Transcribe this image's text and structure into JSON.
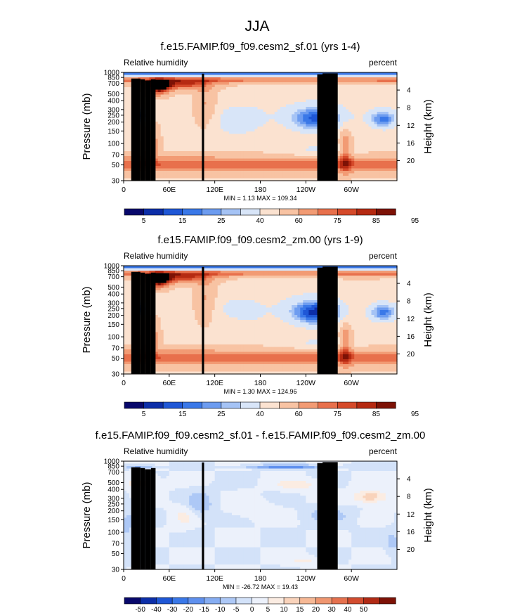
{
  "figure_title": "JJA",
  "colors": {
    "absolute_scale": [
      "#08086b",
      "#0c2ea8",
      "#1f57d6",
      "#3a78e8",
      "#6d9cf0",
      "#a5c3f5",
      "#d8e5f8",
      "#fbe2d0",
      "#f8c3a3",
      "#f29b74",
      "#e8704c",
      "#d54a2a",
      "#b52a12",
      "#7d1206"
    ],
    "difference_scale": [
      "#08086b",
      "#0c2ea8",
      "#1f57d6",
      "#3a78e8",
      "#5f90ee",
      "#86adf2",
      "#adc8f6",
      "#d3e2f9",
      "#ecf1fb",
      "#fbece2",
      "#f9d3bb",
      "#f6b895",
      "#ef9670",
      "#e5714e",
      "#d24c2f",
      "#b12a15",
      "#7d1206"
    ],
    "topography": "#000000"
  },
  "chart_data": [
    {
      "type": "contour",
      "title": "f.e15.FAMIP.f09_f09.cesm2_sf.01 (yrs 1-4)",
      "variable": "Relative humidity",
      "units": "percent",
      "ylabel": "Pressure (mb)",
      "y2label": "Height (km)",
      "x_ticks": [
        "0",
        "60E",
        "120E",
        "180",
        "120W",
        "60W"
      ],
      "y_ticks": [
        "30",
        "50",
        "70",
        "100",
        "150",
        "200",
        "250",
        "300",
        "400",
        "500",
        "700",
        "850",
        "1000"
      ],
      "y_tick_values": [
        30,
        50,
        70,
        100,
        150,
        200,
        250,
        300,
        400,
        500,
        700,
        850,
        1000
      ],
      "y2_ticks": [
        "20",
        "16",
        "12",
        "8",
        "4"
      ],
      "y2_tick_values": [
        20,
        16,
        12,
        8,
        4
      ],
      "xlim": [
        0,
        360
      ],
      "ylim": [
        1000,
        30
      ],
      "stats": "MIN =   1.13  MAX = 109.34",
      "min": 1.13,
      "max": 109.34,
      "colorbar_levels": [
        5,
        10,
        15,
        20,
        25,
        30,
        40,
        50,
        60,
        70,
        75,
        80,
        85,
        90,
        95
      ],
      "colorbar_labels": [
        "5",
        "15",
        "25",
        "40",
        "60",
        "75",
        "85",
        "95"
      ],
      "scale": "absolute",
      "case": 0
    },
    {
      "type": "contour",
      "title": "f.e15.FAMIP.f09_f09.cesm2_zm.00 (yrs 1-9)",
      "variable": "Relative humidity",
      "units": "percent",
      "ylabel": "Pressure (mb)",
      "y2label": "Height (km)",
      "x_ticks": [
        "0",
        "60E",
        "120E",
        "180",
        "120W",
        "60W"
      ],
      "y_ticks": [
        "30",
        "50",
        "70",
        "100",
        "150",
        "200",
        "250",
        "300",
        "400",
        "500",
        "700",
        "850",
        "1000"
      ],
      "y_tick_values": [
        30,
        50,
        70,
        100,
        150,
        200,
        250,
        300,
        400,
        500,
        700,
        850,
        1000
      ],
      "y2_ticks": [
        "20",
        "16",
        "12",
        "8",
        "4"
      ],
      "y2_tick_values": [
        20,
        16,
        12,
        8,
        4
      ],
      "xlim": [
        0,
        360
      ],
      "ylim": [
        1000,
        30
      ],
      "stats": "MIN =   1.30  MAX = 124.96",
      "min": 1.3,
      "max": 124.96,
      "colorbar_levels": [
        5,
        10,
        15,
        20,
        25,
        30,
        40,
        50,
        60,
        70,
        75,
        80,
        85,
        90,
        95
      ],
      "colorbar_labels": [
        "5",
        "15",
        "25",
        "40",
        "60",
        "75",
        "85",
        "95"
      ],
      "scale": "absolute",
      "case": 1
    },
    {
      "type": "contour",
      "title": "f.e15.FAMIP.f09_f09.cesm2_sf.01 - f.e15.FAMIP.f09_f09.cesm2_zm.00",
      "variable": "Relative humidity",
      "units": "percent",
      "ylabel": "Pressure (mb)",
      "y2label": "Height (km)",
      "x_ticks": [
        "0",
        "60E",
        "120E",
        "180",
        "120W",
        "60W"
      ],
      "y_ticks": [
        "30",
        "50",
        "70",
        "100",
        "150",
        "200",
        "250",
        "300",
        "400",
        "500",
        "700",
        "850",
        "1000"
      ],
      "y_tick_values": [
        30,
        50,
        70,
        100,
        150,
        200,
        250,
        300,
        400,
        500,
        700,
        850,
        1000
      ],
      "y2_ticks": [
        "20",
        "16",
        "12",
        "8",
        "4"
      ],
      "y2_tick_values": [
        20,
        16,
        12,
        8,
        4
      ],
      "xlim": [
        0,
        360
      ],
      "ylim": [
        1000,
        30
      ],
      "stats": "MIN = -26.72  MAX =  19.43",
      "min": -26.72,
      "max": 19.43,
      "colorbar_levels": [
        -50,
        -40,
        -30,
        -20,
        -15,
        -10,
        -5,
        0,
        5,
        10,
        15,
        20,
        30,
        40,
        50
      ],
      "colorbar_labels": [
        "-50",
        "-40",
        "-30",
        "-20",
        "-15",
        "-10",
        "-5",
        "0",
        "5",
        "10",
        "15",
        "20",
        "30",
        "40",
        "50"
      ],
      "scale": "difference",
      "case": 2
    }
  ]
}
